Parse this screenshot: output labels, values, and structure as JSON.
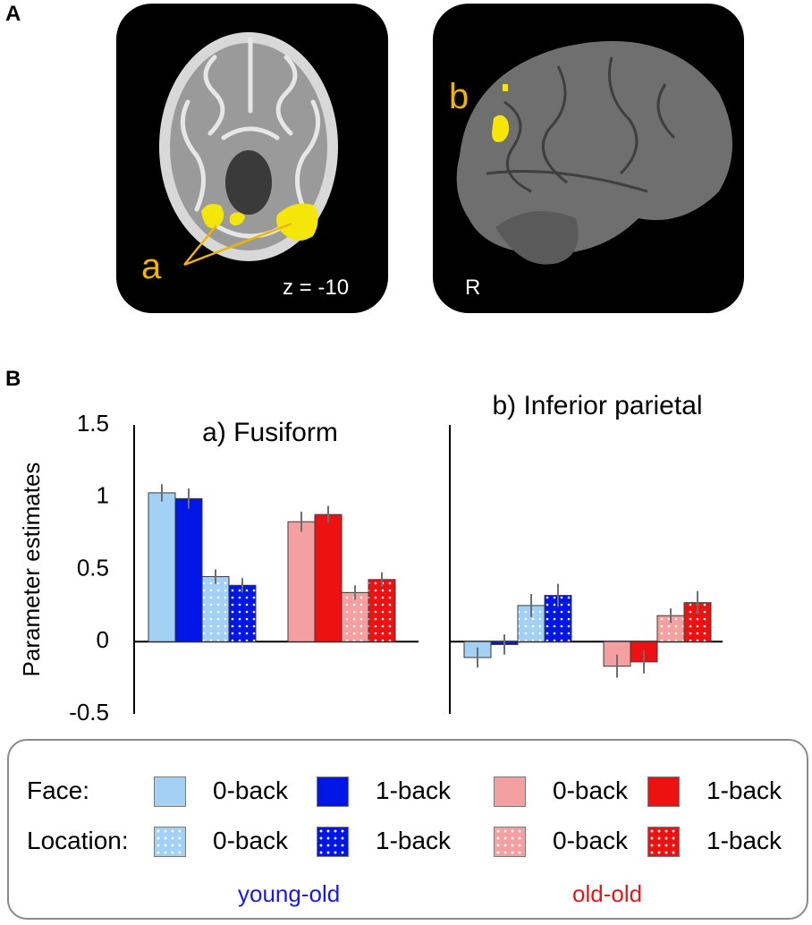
{
  "panel_a": {
    "letter": "A",
    "axial_slice_label": "z = -10",
    "lateral_view_label": "R",
    "region_a_label": "a",
    "region_b_label": "b"
  },
  "panel_b": {
    "letter": "B"
  },
  "colors": {
    "young_old_face_0back": "#a3d0f5",
    "young_old_face_1back": "#0016e6",
    "old_old_face_0back": "#f5a0a0",
    "old_old_face_1back": "#ee1111",
    "young_old_text": "#1a1adb",
    "old_old_text": "#e01919",
    "region_highlight": "#f5e60a"
  },
  "chart_data": [
    {
      "type": "bar",
      "title": "a) Fusiform",
      "ylabel": "Parameter estimates",
      "ylim": [
        -0.5,
        1.5
      ],
      "yticks": [
        "1.5",
        "1",
        "0.5",
        "0",
        "-0.5"
      ],
      "grid": false,
      "series": [
        {
          "name": "young-old Face 0-back",
          "value": 1.03,
          "error": 0.06
        },
        {
          "name": "young-old Face 1-back",
          "value": 0.99,
          "error": 0.07
        },
        {
          "name": "young-old Location 0-back",
          "value": 0.45,
          "error": 0.05
        },
        {
          "name": "young-old Location 1-back",
          "value": 0.39,
          "error": 0.05
        },
        {
          "name": "old-old Face 0-back",
          "value": 0.83,
          "error": 0.07
        },
        {
          "name": "old-old Face 1-back",
          "value": 0.88,
          "error": 0.06
        },
        {
          "name": "old-old Location 0-back",
          "value": 0.34,
          "error": 0.05
        },
        {
          "name": "old-old Location 1-back",
          "value": 0.43,
          "error": 0.05
        }
      ]
    },
    {
      "type": "bar",
      "title": "b) Inferior parietal",
      "ylim": [
        -0.5,
        1.5
      ],
      "grid": false,
      "series": [
        {
          "name": "young-old Face 0-back",
          "value": -0.11,
          "error": 0.07
        },
        {
          "name": "young-old Face 1-back",
          "value": -0.02,
          "error": 0.07
        },
        {
          "name": "young-old Location 0-back",
          "value": 0.25,
          "error": 0.08
        },
        {
          "name": "young-old Location 1-back",
          "value": 0.32,
          "error": 0.08
        },
        {
          "name": "old-old Face 0-back",
          "value": -0.17,
          "error": 0.08
        },
        {
          "name": "old-old Face 1-back",
          "value": -0.14,
          "error": 0.08
        },
        {
          "name": "old-old Location 0-back",
          "value": 0.18,
          "error": 0.05
        },
        {
          "name": "old-old Location 1-back",
          "value": 0.27,
          "error": 0.08
        }
      ]
    }
  ],
  "legend": {
    "row_face": "Face:",
    "row_location": "Location:",
    "item_0back": "0-back",
    "item_1back": "1-back",
    "group_young": "young-old",
    "group_old": "old-old"
  }
}
